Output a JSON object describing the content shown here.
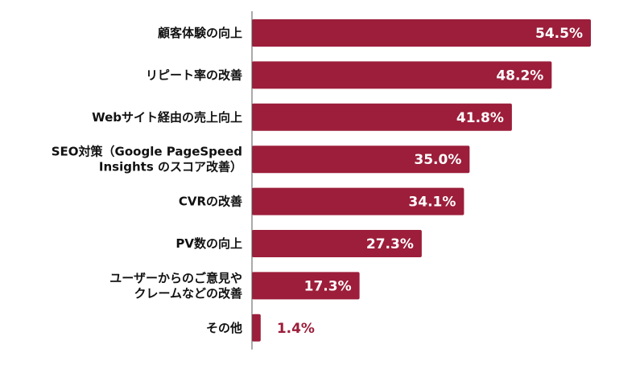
{
  "chart_data": {
    "type": "bar",
    "orientation": "horizontal",
    "categories": [
      [
        "顧客体験の向上"
      ],
      [
        "リピート率の改善"
      ],
      [
        "Webサイト経由の売上向上"
      ],
      [
        "SEO対策（Google PageSpeed",
        "Insights のスコア改善）"
      ],
      [
        "CVRの改善"
      ],
      [
        "PV数の向上"
      ],
      [
        "ユーザーからのご意見や",
        "クレームなどの改善"
      ],
      [
        "その他"
      ]
    ],
    "values": [
      54.5,
      48.2,
      41.8,
      35.0,
      34.1,
      27.3,
      17.3,
      1.4
    ],
    "value_labels": [
      "54.5%",
      "48.2%",
      "41.8%",
      "35.0%",
      "34.1%",
      "27.3%",
      "17.3%",
      "1.4%"
    ],
    "xlim": [
      0,
      54.5
    ],
    "grid": false,
    "legend": "none",
    "axis_line": true
  },
  "colors": {
    "bar": "#9c1e3a",
    "value_inside": "#ffffff",
    "value_outside": "#9c1e3a",
    "axis": "#555555",
    "label": "#111111"
  }
}
